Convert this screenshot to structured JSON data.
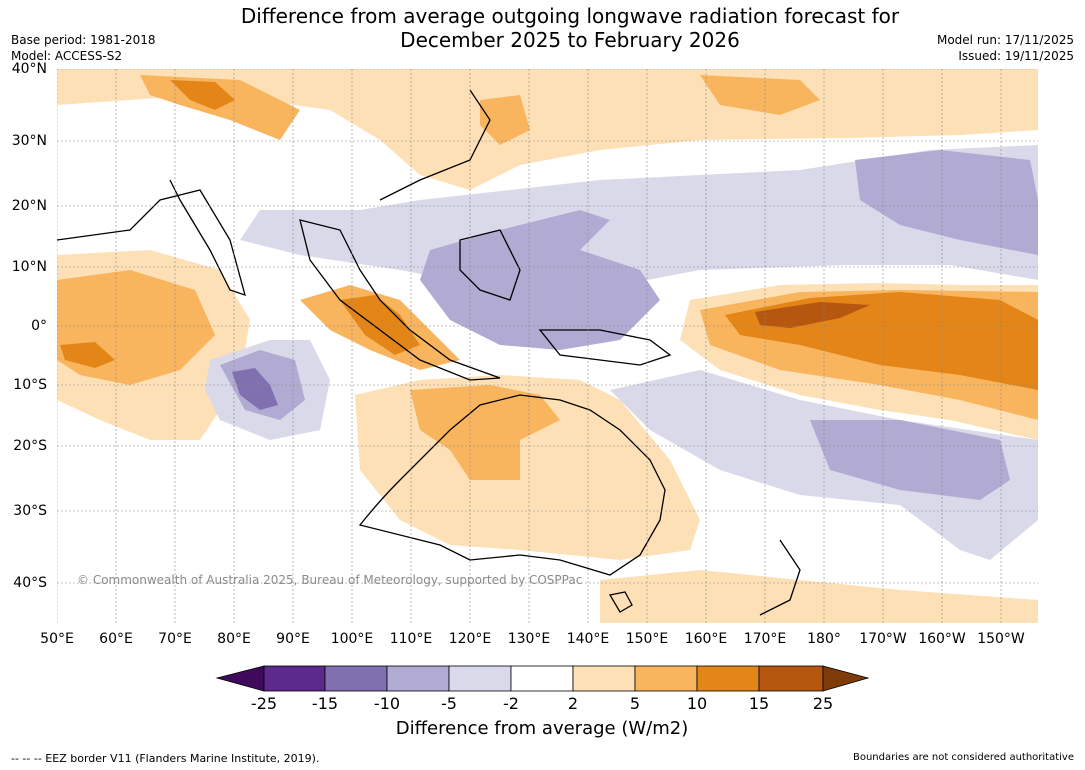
{
  "header": {
    "title_line1": "Difference from average outgoing longwave radiation forecast for",
    "title_line2": "December 2025 to February 2026",
    "base_period": "Base period: 1981-2018",
    "model": "Model: ACCESS-S2",
    "model_run": "Model run: 17/11/2025",
    "issued": "Issued: 19/11/2025"
  },
  "map": {
    "lat_labels": [
      "40°N",
      "30°N",
      "20°N",
      "10°N",
      "0°",
      "10°S",
      "20°S",
      "30°S",
      "40°S"
    ],
    "lon_labels": [
      "50°E",
      "60°E",
      "70°E",
      "80°E",
      "90°E",
      "100°E",
      "110°E",
      "120°E",
      "130°E",
      "140°E",
      "150°E",
      "160°E",
      "170°E",
      "180°",
      "170°W",
      "160°W",
      "150°W"
    ],
    "copyright": "© Commonwealth of Australia 2025, Bureau of Meteorology, supported by COSPPac",
    "colors": {
      "ocean": "#ffffff",
      "pos_2_5": "#fde0b6",
      "pos_5_10": "#f9b45e",
      "pos_10_15": "#e38517",
      "pos_15_25": "#b5570f",
      "neg_2_5": "#d9d9ea",
      "neg_5_10": "#b1aad2",
      "neg_10_15": "#8170b0",
      "coast": "#000000",
      "border": "#888888"
    }
  },
  "colorbar": {
    "title": "Difference from average (W/m2)",
    "ticks": [
      "-25",
      "-15",
      "-10",
      "-5",
      "-2",
      "2",
      "5",
      "10",
      "15",
      "25"
    ],
    "colors": [
      "#3f0a5c",
      "#5b2a8a",
      "#8170b0",
      "#b1aad2",
      "#d9d9ea",
      "#ffffff",
      "#fde0b6",
      "#f9b45e",
      "#e38517",
      "#b5570f",
      "#7f3b08"
    ]
  },
  "footer": {
    "eez_note": "--  --  -- EEZ border V11 (Flanders Marine Institute, 2019).",
    "boundaries_note": "Boundaries are not considered authoritative"
  }
}
